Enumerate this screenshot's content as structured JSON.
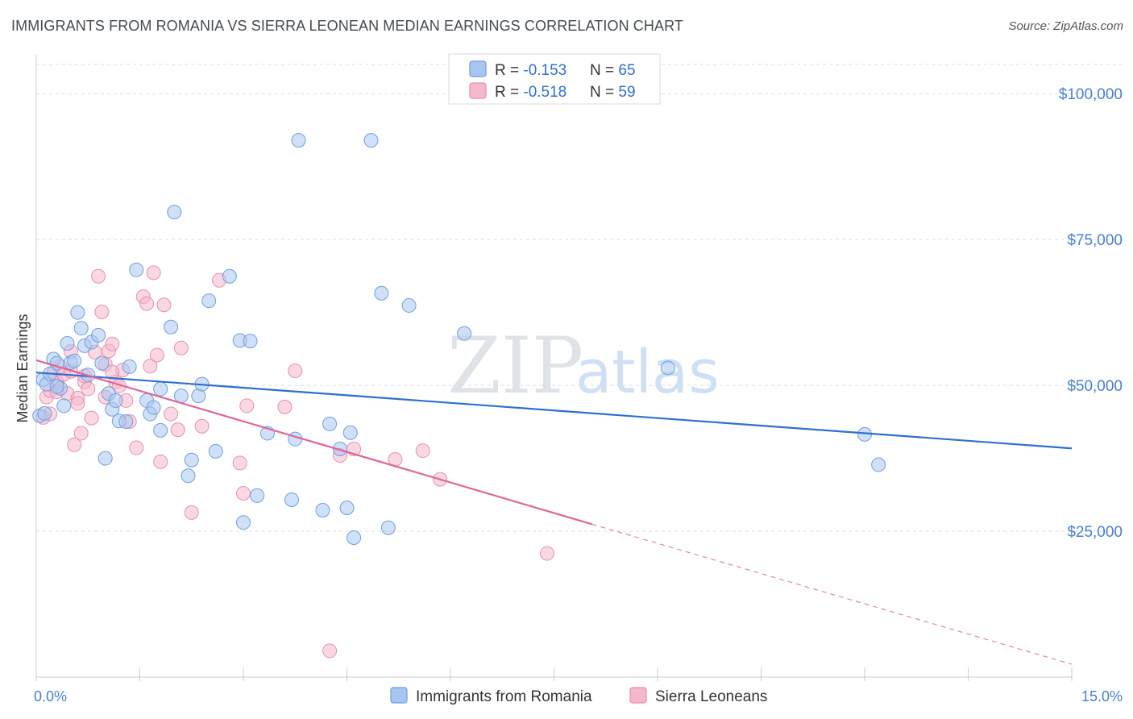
{
  "title": "IMMIGRANTS FROM ROMANIA VS SIERRA LEONEAN MEDIAN EARNINGS CORRELATION CHART",
  "source": "Source: ZipAtlas.com",
  "colors": {
    "blue_fill": "#a9c6f0",
    "blue_stroke": "#6f9fe0",
    "blue_line": "#2d6fd1",
    "pink_fill": "#f5b8cb",
    "pink_stroke": "#e88fae",
    "pink_line": "#e0649a",
    "grid": "#d9dde3",
    "tick_text": "#4a7fd0"
  },
  "legend": {
    "row1": {
      "r_label": "R = ",
      "r_value": "-0.153",
      "n_label": "N = ",
      "n_value": "65"
    },
    "row2": {
      "r_label": "R = ",
      "r_value": "-0.518",
      "n_label": "N = ",
      "n_value": "59"
    }
  },
  "watermark": {
    "zip": "ZIP",
    "atlas": "atlas"
  },
  "chart_data": {
    "type": "scatter",
    "title": "IMMIGRANTS FROM ROMANIA VS SIERRA LEONEAN MEDIAN EARNINGS CORRELATION CHART",
    "xlabel": "",
    "ylabel": "Median Earnings",
    "xlim": [
      0,
      15
    ],
    "ylim": [
      0,
      105000
    ],
    "x_tick_labels": [
      "0.0%",
      "15.0%"
    ],
    "y_ticks": [
      25000,
      50000,
      75000,
      100000
    ],
    "y_tick_labels": [
      "$25,000",
      "$50,000",
      "$75,000",
      "$100,000"
    ],
    "grid": true,
    "legend_position": "top-center",
    "series": [
      {
        "name": "Immigrants from Romania",
        "color": "#a9c6f0",
        "trend": {
          "x": [
            0,
            15
          ],
          "y": [
            52200,
            39200
          ]
        },
        "points": [
          [
            0.05,
            44800
          ],
          [
            0.1,
            51000
          ],
          [
            0.15,
            50200
          ],
          [
            0.2,
            52000
          ],
          [
            0.25,
            54500
          ],
          [
            0.3,
            53800
          ],
          [
            0.35,
            49500
          ],
          [
            0.45,
            57200
          ],
          [
            0.5,
            53900
          ],
          [
            0.6,
            62500
          ],
          [
            0.65,
            59800
          ],
          [
            0.7,
            56800
          ],
          [
            0.8,
            57400
          ],
          [
            0.9,
            58600
          ],
          [
            0.95,
            53800
          ],
          [
            0.75,
            51800
          ],
          [
            1.0,
            37500
          ],
          [
            1.05,
            48600
          ],
          [
            1.1,
            45900
          ],
          [
            1.15,
            47400
          ],
          [
            1.2,
            43900
          ],
          [
            1.3,
            43800
          ],
          [
            1.35,
            53200
          ],
          [
            1.45,
            69800
          ],
          [
            1.6,
            47400
          ],
          [
            1.65,
            45100
          ],
          [
            1.7,
            46200
          ],
          [
            1.8,
            42300
          ],
          [
            1.8,
            49400
          ],
          [
            1.95,
            60000
          ],
          [
            2.0,
            79700
          ],
          [
            2.1,
            48200
          ],
          [
            2.2,
            34500
          ],
          [
            2.25,
            37200
          ],
          [
            2.35,
            48200
          ],
          [
            2.4,
            50200
          ],
          [
            2.5,
            64500
          ],
          [
            2.6,
            38700
          ],
          [
            2.8,
            68700
          ],
          [
            2.95,
            57700
          ],
          [
            3.0,
            26500
          ],
          [
            3.1,
            57600
          ],
          [
            3.2,
            31100
          ],
          [
            3.35,
            41800
          ],
          [
            3.7,
            30400
          ],
          [
            3.75,
            40800
          ],
          [
            3.8,
            92000
          ],
          [
            4.15,
            28600
          ],
          [
            4.25,
            43400
          ],
          [
            4.4,
            39100
          ],
          [
            4.5,
            29000
          ],
          [
            4.55,
            41900
          ],
          [
            4.6,
            23900
          ],
          [
            4.85,
            92000
          ],
          [
            5.0,
            65800
          ],
          [
            5.1,
            25600
          ],
          [
            5.4,
            63700
          ],
          [
            6.2,
            58900
          ],
          [
            9.15,
            53000
          ],
          [
            0.12,
            45200
          ],
          [
            0.4,
            46500
          ],
          [
            0.55,
            54200
          ],
          [
            0.3,
            49800
          ],
          [
            12.0,
            41600
          ],
          [
            12.2,
            36400
          ]
        ]
      },
      {
        "name": "Sierra Leoneans",
        "color": "#f5b8cb",
        "trend": {
          "x": [
            0,
            8.05
          ],
          "y": [
            54300,
            26200
          ]
        },
        "trend_dashed": {
          "x": [
            8.05,
            15
          ],
          "y": [
            26200,
            2200
          ]
        },
        "points": [
          [
            0.1,
            44500
          ],
          [
            0.15,
            48000
          ],
          [
            0.2,
            45100
          ],
          [
            0.25,
            52100
          ],
          [
            0.3,
            50600
          ],
          [
            0.35,
            53200
          ],
          [
            0.4,
            51900
          ],
          [
            0.45,
            48600
          ],
          [
            0.5,
            55800
          ],
          [
            0.55,
            39800
          ],
          [
            0.6,
            47800
          ],
          [
            0.65,
            41800
          ],
          [
            0.7,
            50600
          ],
          [
            0.75,
            49400
          ],
          [
            0.8,
            44400
          ],
          [
            0.85,
            55700
          ],
          [
            0.9,
            68700
          ],
          [
            0.95,
            62600
          ],
          [
            1.0,
            48000
          ],
          [
            1.05,
            55900
          ],
          [
            1.1,
            57100
          ],
          [
            1.15,
            50600
          ],
          [
            1.25,
            52600
          ],
          [
            1.3,
            47400
          ],
          [
            1.35,
            43800
          ],
          [
            1.45,
            39300
          ],
          [
            1.55,
            65200
          ],
          [
            1.6,
            64000
          ],
          [
            1.65,
            53300
          ],
          [
            1.7,
            69300
          ],
          [
            1.75,
            55200
          ],
          [
            1.8,
            36900
          ],
          [
            1.85,
            63800
          ],
          [
            1.95,
            45100
          ],
          [
            2.05,
            42400
          ],
          [
            2.1,
            56400
          ],
          [
            2.25,
            28200
          ],
          [
            2.4,
            43000
          ],
          [
            2.65,
            68000
          ],
          [
            2.95,
            36700
          ],
          [
            3.0,
            31500
          ],
          [
            3.05,
            46500
          ],
          [
            3.6,
            46300
          ],
          [
            3.75,
            52500
          ],
          [
            4.25,
            4500
          ],
          [
            4.4,
            38000
          ],
          [
            4.6,
            39100
          ],
          [
            5.2,
            37300
          ],
          [
            5.6,
            38800
          ],
          [
            5.85,
            33900
          ],
          [
            7.4,
            21200
          ],
          [
            0.2,
            49100
          ],
          [
            0.5,
            52400
          ],
          [
            0.7,
            51600
          ],
          [
            1.0,
            53600
          ],
          [
            1.1,
            52300
          ],
          [
            0.3,
            48900
          ],
          [
            0.6,
            46900
          ],
          [
            1.2,
            49900
          ]
        ]
      }
    ]
  },
  "bottom_legend": {
    "item1": "Immigrants from Romania",
    "item2": "Sierra Leoneans"
  }
}
